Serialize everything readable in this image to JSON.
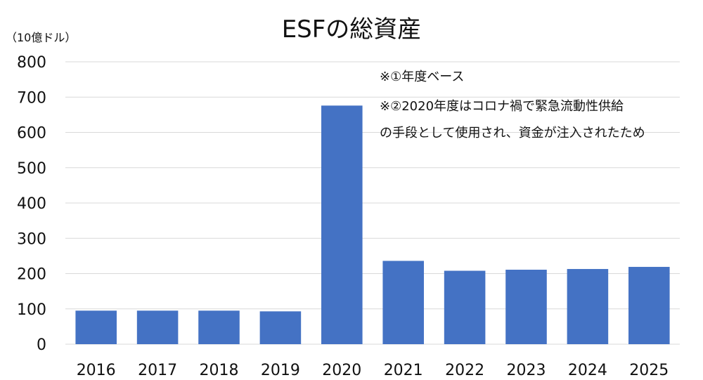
{
  "chart_data": {
    "type": "bar",
    "title": "ESFの総資産",
    "unit_label": "（10億ドル）",
    "categories": [
      "2016",
      "2017",
      "2018",
      "2019",
      "2020",
      "2021",
      "2022",
      "2023",
      "2024",
      "2025"
    ],
    "values": [
      95,
      95,
      95,
      93,
      676,
      236,
      208,
      211,
      213,
      219
    ],
    "ylim": [
      0,
      800
    ],
    "yticks": [
      0,
      100,
      200,
      300,
      400,
      500,
      600,
      700,
      800
    ],
    "grid": true,
    "bar_color": "#4472C4",
    "grid_color": "#d9d9d9",
    "annotations": [
      "※①年度ベース",
      "※②2020年度はコロナ禍で緊急流動性供給",
      "の手段として使用され、資金が注入されたため"
    ]
  }
}
